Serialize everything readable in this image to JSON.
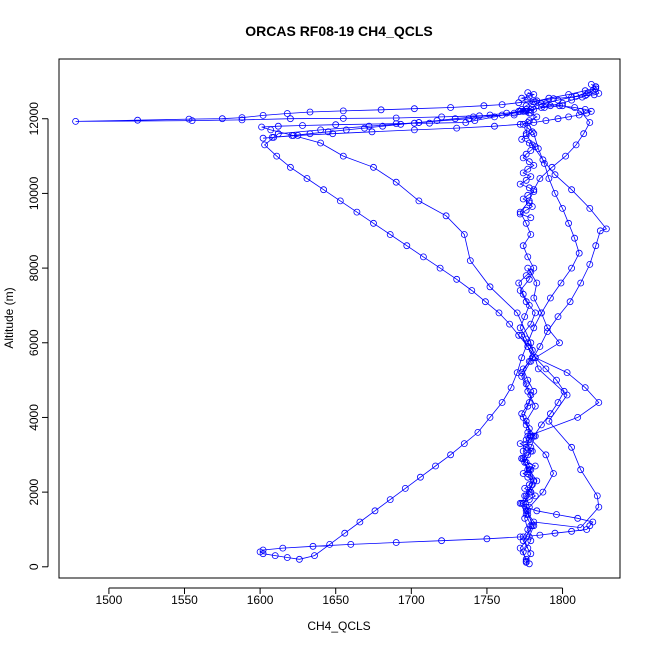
{
  "chart_data": {
    "type": "line",
    "title": "ORCAS RF08-19 CH4_QCLS",
    "xlabel": "CH4_QCLS",
    "ylabel": "Altitude (m)",
    "xlim": [
      1467,
      1838
    ],
    "ylim": [
      -300,
      13600
    ],
    "x_ticks": [
      1500,
      1550,
      1600,
      1650,
      1700,
      1750,
      1800
    ],
    "y_ticks": [
      0,
      2000,
      4000,
      6000,
      8000,
      10000,
      12000
    ],
    "x_tick_labels": [
      "1500",
      "1550",
      "1600",
      "1650",
      "1700",
      "1750",
      "1800"
    ],
    "y_tick_labels": [
      "0",
      "2000",
      "4000",
      "6000",
      "8000",
      "10000",
      "12000"
    ],
    "marker": "open-circle",
    "series_color": "#0000ff",
    "grid": false,
    "series": [
      {
        "x": [
          1778,
          1776,
          1774,
          1779,
          1777,
          1775,
          1778,
          1776,
          1780,
          1777,
          1775,
          1779,
          1776,
          1778,
          1774,
          1777,
          1779,
          1776,
          1773,
          1778,
          1780,
          1776,
          1772,
          1775,
          1778,
          1774,
          1771,
          1776,
          1779,
          1777,
          1783,
          1781,
          1786,
          1790,
          1798,
          1782,
          1803,
          1815,
          1824,
          1810,
          1777,
          1789,
          1794,
          1787,
          1776,
          1781,
          1812,
          1824,
          1823,
          1812,
          1806,
          1791,
          1803,
          1784,
          1779,
          1770,
          1752,
          1739,
          1735,
          1723,
          1705,
          1690,
          1675,
          1655,
          1640,
          1622,
          1607,
          1601,
          1612,
          1628,
          1650,
          1690,
          1702,
          1712,
          1736,
          1742,
          1755,
          1768,
          1776,
          1781,
          1786,
          1792,
          1800,
          1806,
          1813,
          1816,
          1820,
          1822,
          1819,
          1822,
          1824,
          1821,
          1815,
          1806,
          1794,
          1783,
          1771,
          1760,
          1748,
          1726,
          1702,
          1680,
          1655,
          1633,
          1618,
          1602,
          1588,
          1575,
          1553,
          1519,
          1478,
          1555,
          1588,
          1620,
          1655,
          1690,
          1720,
          1745,
          1768,
          1778,
          1771,
          1776
        ],
        "y": [
          80,
          150,
          400,
          700,
          1000,
          1300,
          1600,
          1900,
          2200,
          2500,
          2800,
          3100,
          3400,
          3700,
          4000,
          4300,
          4600,
          4900,
          5200,
          5500,
          5800,
          6100,
          6400,
          6700,
          7000,
          7300,
          7600,
          7800,
          7900,
          8000,
          7600,
          7200,
          6800,
          6400,
          6000,
          5600,
          5200,
          4800,
          4400,
          4000,
          3500,
          3000,
          2500,
          2000,
          1500,
          1200,
          1050,
          1600,
          1900,
          2600,
          3200,
          3900,
          4600,
          5300,
          6000,
          6800,
          7500,
          8200,
          8900,
          9400,
          9800,
          10300,
          10700,
          11000,
          11350,
          11550,
          11700,
          11780,
          11800,
          11820,
          11840,
          11870,
          11880,
          11880,
          11900,
          11950,
          12050,
          12150,
          12200,
          12250,
          12300,
          12350,
          12420,
          12500,
          12580,
          12650,
          12750,
          12850,
          12920,
          12860,
          12680,
          12640,
          12620,
          12580,
          12540,
          12480,
          12430,
          12380,
          12350,
          12300,
          12270,
          12240,
          12210,
          12180,
          12140,
          12090,
          12030,
          12000,
          11990,
          11960,
          11930,
          11950,
          11970,
          12000,
          12010,
          12020,
          12050,
          12080,
          12100,
          12150,
          12200,
          12250
        ]
      },
      {
        "x": [
          1776,
          1779,
          1774,
          1780,
          1777,
          1775,
          1781,
          1778,
          1774,
          1779,
          1776,
          1782,
          1777,
          1773,
          1779,
          1785,
          1790,
          1797,
          1805,
          1812,
          1818,
          1822,
          1825,
          1829,
          1818,
          1806,
          1795,
          1787,
          1780,
          1776,
          1777,
          1781,
          1784,
          1788,
          1791,
          1795,
          1800,
          1804,
          1808,
          1811,
          1806,
          1799,
          1792,
          1786,
          1781,
          1777,
          1773,
          1770,
          1766,
          1760,
          1752,
          1744,
          1735,
          1726,
          1716,
          1706,
          1696,
          1686,
          1676,
          1666,
          1656,
          1646,
          1636,
          1626,
          1618,
          1610,
          1602,
          1600,
          1602,
          1615,
          1635,
          1660,
          1690,
          1720,
          1750,
          1772,
          1785,
          1795,
          1806,
          1816,
          1818,
          1820,
          1810,
          1796,
          1783,
          1776,
          1773,
          1778,
          1782,
          1779,
          1775,
          1778,
          1781,
          1777,
          1774,
          1779,
          1782,
          1776,
          1773,
          1777,
          1780,
          1776,
          1772,
          1778,
          1781,
          1777
        ],
        "y": [
          120,
          350,
          700,
          1100,
          1500,
          1900,
          2300,
          2700,
          3100,
          3500,
          3900,
          4300,
          4700,
          5100,
          5500,
          5900,
          6300,
          6700,
          7100,
          7600,
          8100,
          8600,
          9000,
          9050,
          9600,
          10100,
          10500,
          10900,
          11300,
          11600,
          11900,
          11600,
          11200,
          10800,
          10400,
          10000,
          9600,
          9200,
          8800,
          8400,
          8000,
          7600,
          7200,
          6800,
          6400,
          6000,
          5600,
          5200,
          4800,
          4400,
          4000,
          3600,
          3300,
          3000,
          2700,
          2400,
          2100,
          1800,
          1500,
          1200,
          900,
          600,
          300,
          200,
          250,
          300,
          350,
          400,
          450,
          500,
          550,
          600,
          650,
          700,
          750,
          800,
          850,
          900,
          950,
          1000,
          1100,
          1200,
          1300,
          1400,
          1500,
          1600,
          1700,
          1800,
          1900,
          2000,
          2100,
          2200,
          2300,
          2400,
          2500,
          2600,
          2700,
          2800,
          2900,
          3000,
          3100,
          3200,
          3300,
          3400,
          3500,
          3600
        ]
      },
      {
        "x": [
          1776,
          1772,
          1778,
          1781,
          1777,
          1774,
          1779,
          1783,
          1778,
          1773,
          1776,
          1781,
          1786,
          1792,
          1797,
          1801,
          1796,
          1789,
          1782,
          1777,
          1771,
          1765,
          1758,
          1749,
          1740,
          1730,
          1719,
          1708,
          1697,
          1686,
          1675,
          1664,
          1653,
          1642,
          1631,
          1620,
          1611,
          1603,
          1612,
          1640,
          1672,
          1705,
          1738,
          1760,
          1774,
          1780,
          1786,
          1797,
          1809,
          1817,
          1822,
          1815,
          1804,
          1791,
          1781,
          1776,
          1773,
          1779,
          1783,
          1778,
          1774,
          1777,
          1780,
          1776,
          1773,
          1778,
          1782,
          1779,
          1776,
          1774,
          1778,
          1781,
          1777,
          1774,
          1779,
          1776,
          1772,
          1778,
          1781,
          1777,
          1774,
          1778,
          1780,
          1776,
          1772,
          1779
        ],
        "y": [
          200,
          500,
          800,
          1100,
          1400,
          1700,
          2000,
          2300,
          2600,
          2900,
          3200,
          3500,
          3800,
          4100,
          4400,
          4700,
          5000,
          5300,
          5600,
          5900,
          6200,
          6500,
          6800,
          7100,
          7400,
          7700,
          8000,
          8300,
          8600,
          8900,
          9200,
          9500,
          9800,
          10100,
          10400,
          10700,
          11000,
          11300,
          11600,
          11700,
          11800,
          11900,
          12000,
          12100,
          12200,
          12300,
          12400,
          12500,
          12600,
          12700,
          12800,
          12750,
          12650,
          12550,
          12450,
          12350,
          12250,
          12150,
          12050,
          11950,
          11850,
          11750,
          11650,
          11550,
          11450,
          11350,
          11250,
          11150,
          11050,
          10950,
          10850,
          10750,
          10650,
          10550,
          10450,
          10350,
          10250,
          10150,
          10050,
          9950,
          9850,
          9750,
          9650,
          9550,
          9450,
          9350
        ]
      },
      {
        "x": [
          1777,
          1774,
          1779,
          1776,
          1772,
          1778,
          1781,
          1777,
          1774,
          1779,
          1782,
          1776,
          1773,
          1778,
          1781,
          1777,
          1774,
          1780,
          1777,
          1773,
          1779,
          1782,
          1776,
          1772,
          1778,
          1781,
          1777,
          1774,
          1779,
          1776,
          1772,
          1778,
          1781,
          1785,
          1793,
          1802,
          1809,
          1814,
          1818,
          1812,
          1800,
          1788,
          1779,
          1772,
          1763,
          1752,
          1741,
          1729,
          1717,
          1705,
          1693,
          1681,
          1669,
          1657,
          1645,
          1633,
          1621,
          1609,
          1602,
          1608,
          1625,
          1648,
          1674,
          1702,
          1730,
          1755,
          1772,
          1781,
          1789,
          1797,
          1804,
          1811,
          1816,
          1819,
          1815,
          1808,
          1798,
          1789,
          1782,
          1777,
          1773,
          1778,
          1781,
          1777
        ],
        "y": [
          500,
          800,
          1100,
          1400,
          1700,
          2000,
          2300,
          2600,
          2900,
          3200,
          3500,
          3800,
          4100,
          4400,
          4700,
          5000,
          5300,
          5600,
          5900,
          6200,
          6500,
          6800,
          7100,
          7400,
          7700,
          8000,
          8300,
          8600,
          8900,
          9200,
          9500,
          9800,
          10100,
          10400,
          10700,
          11000,
          11300,
          11600,
          11900,
          12200,
          12350,
          12300,
          12250,
          12200,
          12150,
          12100,
          12050,
          12000,
          11950,
          11900,
          11850,
          11800,
          11750,
          11700,
          11650,
          11600,
          11550,
          11500,
          11480,
          11500,
          11550,
          11600,
          11650,
          11700,
          11750,
          11800,
          11850,
          11900,
          11950,
          12000,
          12050,
          12100,
          12150,
          12200,
          12250,
          12300,
          12350,
          12400,
          12450,
          12500,
          12550,
          12600,
          12650,
          12700
        ]
      }
    ]
  }
}
